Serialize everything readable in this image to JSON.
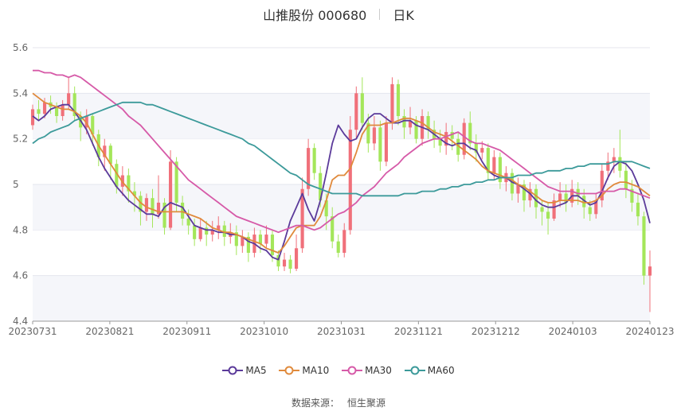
{
  "header": {
    "title": "山推股份 000680",
    "period": "日K"
  },
  "legend": [
    {
      "name": "MA5",
      "color": "#5b3a9a"
    },
    {
      "name": "MA10",
      "color": "#e08a3c"
    },
    {
      "name": "MA30",
      "color": "#d65aa8"
    },
    {
      "name": "MA60",
      "color": "#3c9a9a"
    }
  ],
  "footer": {
    "source_label": "数据来源：",
    "source_name": "恒生聚源"
  },
  "colors": {
    "up": "#f0707a",
    "down": "#a4e65a",
    "grid_band": "#f5f6fa",
    "axis": "#666666"
  },
  "chart_data": {
    "type": "candlestick",
    "title": "山推股份 000680 日K",
    "ylim": [
      4.4,
      5.6
    ],
    "yticks": [
      4.4,
      4.6,
      4.8,
      5,
      5.2,
      5.4,
      5.6
    ],
    "xticks": [
      "20230731",
      "20230821",
      "20230911",
      "20231010",
      "20231031",
      "20231121",
      "20231212",
      "20240103",
      "20240123"
    ],
    "series": [
      {
        "name": "MA5",
        "values": [
          5.3,
          5.28,
          5.3,
          5.33,
          5.34,
          5.35,
          5.35,
          5.32,
          5.28,
          5.24,
          5.18,
          5.12,
          5.07,
          5.03,
          4.99,
          4.96,
          4.93,
          4.91,
          4.89,
          4.87,
          4.87,
          4.86,
          4.9,
          4.92,
          4.91,
          4.9,
          4.86,
          4.82,
          4.81,
          4.8,
          4.8,
          4.79,
          4.79,
          4.78,
          4.78,
          4.77,
          4.75,
          4.74,
          4.72,
          4.71,
          4.68,
          4.67,
          4.75,
          4.84,
          4.9,
          4.96,
          4.89,
          4.84,
          4.93,
          5.05,
          5.18,
          5.26,
          5.22,
          5.19,
          5.2,
          5.25,
          5.29,
          5.31,
          5.31,
          5.29,
          5.27,
          5.27,
          5.28,
          5.28,
          5.26,
          5.25,
          5.24,
          5.22,
          5.2,
          5.18,
          5.17,
          5.18,
          5.18,
          5.16,
          5.15,
          5.1,
          5.06,
          5.04,
          5.03,
          5.03,
          5.01,
          5.0,
          4.98,
          4.96,
          4.93,
          4.91,
          4.9,
          4.9,
          4.91,
          4.92,
          4.95,
          4.95,
          4.93,
          4.91,
          4.92,
          4.97,
          5.03,
          5.08,
          5.1,
          5.09,
          5.06,
          5.0,
          4.93,
          4.83
        ]
      },
      {
        "name": "MA10",
        "values": [
          5.4,
          5.38,
          5.36,
          5.35,
          5.34,
          5.33,
          5.33,
          5.32,
          5.3,
          5.27,
          5.22,
          5.17,
          5.13,
          5.09,
          5.05,
          5.01,
          4.98,
          4.95,
          4.92,
          4.9,
          4.89,
          4.88,
          4.88,
          4.88,
          4.88,
          4.88,
          4.87,
          4.86,
          4.85,
          4.83,
          4.81,
          4.8,
          4.79,
          4.79,
          4.78,
          4.77,
          4.76,
          4.75,
          4.74,
          4.72,
          4.71,
          4.7,
          4.73,
          4.77,
          4.81,
          4.82,
          4.82,
          4.82,
          4.86,
          4.93,
          5.02,
          5.04,
          5.04,
          5.07,
          5.14,
          5.22,
          5.26,
          5.26,
          5.26,
          5.27,
          5.27,
          5.28,
          5.29,
          5.29,
          5.28,
          5.27,
          5.25,
          5.23,
          5.22,
          5.21,
          5.19,
          5.17,
          5.15,
          5.13,
          5.11,
          5.08,
          5.06,
          5.05,
          5.04,
          5.03,
          5.02,
          5.0,
          4.99,
          4.97,
          4.95,
          4.93,
          4.92,
          4.92,
          4.93,
          4.93,
          4.93,
          4.93,
          4.92,
          4.92,
          4.93,
          4.95,
          4.98,
          5.0,
          5.01,
          5.01,
          5.0,
          4.99,
          4.97,
          4.95
        ]
      },
      {
        "name": "MA30",
        "values": [
          5.5,
          5.5,
          5.49,
          5.49,
          5.48,
          5.48,
          5.47,
          5.48,
          5.47,
          5.45,
          5.43,
          5.41,
          5.39,
          5.37,
          5.35,
          5.33,
          5.3,
          5.28,
          5.26,
          5.23,
          5.2,
          5.17,
          5.14,
          5.11,
          5.08,
          5.05,
          5.02,
          5.0,
          4.98,
          4.96,
          4.94,
          4.92,
          4.9,
          4.88,
          4.86,
          4.85,
          4.84,
          4.83,
          4.82,
          4.81,
          4.8,
          4.79,
          4.8,
          4.81,
          4.82,
          4.82,
          4.81,
          4.8,
          4.81,
          4.83,
          4.85,
          4.87,
          4.88,
          4.9,
          4.92,
          4.95,
          4.97,
          4.99,
          5.02,
          5.05,
          5.07,
          5.09,
          5.12,
          5.14,
          5.16,
          5.18,
          5.19,
          5.2,
          5.2,
          5.21,
          5.22,
          5.23,
          5.21,
          5.19,
          5.18,
          5.18,
          5.17,
          5.16,
          5.15,
          5.13,
          5.11,
          5.09,
          5.07,
          5.05,
          5.03,
          5.01,
          4.99,
          4.98,
          4.97,
          4.97,
          4.97,
          4.96,
          4.96,
          4.96,
          4.96,
          4.97,
          4.97,
          4.97,
          4.98,
          4.98,
          4.97,
          4.96,
          4.95,
          4.94
        ]
      },
      {
        "name": "MA60",
        "values": [
          5.18,
          5.2,
          5.21,
          5.23,
          5.24,
          5.25,
          5.26,
          5.28,
          5.29,
          5.3,
          5.31,
          5.32,
          5.33,
          5.34,
          5.35,
          5.36,
          5.36,
          5.36,
          5.36,
          5.35,
          5.35,
          5.34,
          5.33,
          5.32,
          5.31,
          5.3,
          5.29,
          5.28,
          5.27,
          5.26,
          5.25,
          5.24,
          5.23,
          5.22,
          5.21,
          5.2,
          5.18,
          5.17,
          5.15,
          5.13,
          5.11,
          5.09,
          5.07,
          5.05,
          5.04,
          5.02,
          5.0,
          4.99,
          4.98,
          4.97,
          4.96,
          4.96,
          4.96,
          4.96,
          4.96,
          4.95,
          4.95,
          4.95,
          4.95,
          4.95,
          4.95,
          4.95,
          4.96,
          4.96,
          4.96,
          4.97,
          4.97,
          4.97,
          4.98,
          4.98,
          4.99,
          4.99,
          5.0,
          5.0,
          5.01,
          5.01,
          5.02,
          5.02,
          5.03,
          5.03,
          5.03,
          5.04,
          5.04,
          5.04,
          5.05,
          5.05,
          5.06,
          5.06,
          5.06,
          5.07,
          5.07,
          5.08,
          5.08,
          5.09,
          5.09,
          5.09,
          5.09,
          5.1,
          5.1,
          5.1,
          5.1,
          5.09,
          5.08,
          5.07
        ]
      }
    ],
    "candles": [
      [
        5.26,
        5.33,
        5.35,
        5.24
      ],
      [
        5.33,
        5.31,
        5.37,
        5.28
      ],
      [
        5.31,
        5.36,
        5.38,
        5.29
      ],
      [
        5.36,
        5.34,
        5.39,
        5.31
      ],
      [
        5.34,
        5.3,
        5.36,
        5.27
      ],
      [
        5.3,
        5.35,
        5.37,
        5.28
      ],
      [
        5.35,
        5.4,
        5.47,
        5.33
      ],
      [
        5.4,
        5.3,
        5.43,
        5.28
      ],
      [
        5.3,
        5.25,
        5.32,
        5.19
      ],
      [
        5.25,
        5.3,
        5.33,
        5.22
      ],
      [
        5.3,
        5.22,
        5.31,
        5.17
      ],
      [
        5.22,
        5.12,
        5.24,
        5.08
      ],
      [
        5.12,
        5.17,
        5.2,
        5.06
      ],
      [
        5.17,
        5.09,
        5.18,
        5.02
      ],
      [
        5.09,
        4.99,
        5.11,
        4.96
      ],
      [
        4.99,
        5.04,
        5.08,
        4.95
      ],
      [
        5.04,
        4.97,
        5.07,
        4.92
      ],
      [
        4.97,
        4.95,
        5.01,
        4.88
      ],
      [
        4.95,
        4.88,
        4.97,
        4.82
      ],
      [
        4.88,
        4.94,
        4.96,
        4.84
      ],
      [
        4.94,
        4.87,
        4.98,
        4.81
      ],
      [
        4.87,
        4.92,
        5.04,
        4.85
      ],
      [
        4.92,
        4.81,
        4.94,
        4.78
      ],
      [
        4.81,
        5.1,
        5.15,
        4.8
      ],
      [
        5.1,
        4.92,
        5.12,
        4.88
      ],
      [
        4.92,
        4.85,
        4.95,
        4.82
      ],
      [
        4.85,
        4.82,
        4.89,
        4.78
      ],
      [
        4.82,
        4.76,
        4.85,
        4.73
      ],
      [
        4.76,
        4.81,
        4.85,
        4.75
      ],
      [
        4.81,
        4.78,
        4.84,
        4.73
      ],
      [
        4.78,
        4.8,
        4.84,
        4.75
      ],
      [
        4.8,
        4.82,
        4.86,
        4.76
      ],
      [
        4.82,
        4.77,
        4.84,
        4.73
      ],
      [
        4.77,
        4.79,
        4.83,
        4.74
      ],
      [
        4.79,
        4.73,
        4.82,
        4.69
      ],
      [
        4.73,
        4.77,
        4.8,
        4.7
      ],
      [
        4.77,
        4.7,
        4.79,
        4.66
      ],
      [
        4.7,
        4.78,
        4.81,
        4.68
      ],
      [
        4.78,
        4.74,
        4.8,
        4.7
      ],
      [
        4.74,
        4.78,
        4.82,
        4.72
      ],
      [
        4.78,
        4.69,
        4.8,
        4.66
      ],
      [
        4.69,
        4.64,
        4.71,
        4.62
      ],
      [
        4.64,
        4.67,
        4.7,
        4.62
      ],
      [
        4.67,
        4.63,
        4.69,
        4.61
      ],
      [
        4.63,
        4.72,
        4.78,
        4.62
      ],
      [
        4.72,
        4.98,
        5.03,
        4.7
      ],
      [
        4.98,
        5.16,
        5.2,
        4.95
      ],
      [
        5.16,
        5.05,
        5.18,
        5.02
      ],
      [
        5.05,
        4.93,
        5.08,
        4.9
      ],
      [
        4.93,
        4.86,
        4.96,
        4.8
      ],
      [
        4.86,
        4.75,
        4.9,
        4.72
      ],
      [
        4.75,
        4.7,
        4.78,
        4.68
      ],
      [
        4.7,
        4.8,
        4.83,
        4.68
      ],
      [
        4.8,
        5.24,
        5.3,
        4.78
      ],
      [
        5.24,
        5.4,
        5.43,
        5.2
      ],
      [
        5.4,
        5.27,
        5.47,
        5.24
      ],
      [
        5.27,
        5.18,
        5.31,
        5.14
      ],
      [
        5.18,
        5.25,
        5.3,
        5.15
      ],
      [
        5.25,
        5.1,
        5.28,
        5.06
      ],
      [
        5.1,
        5.27,
        5.3,
        5.08
      ],
      [
        5.27,
        5.44,
        5.47,
        5.24
      ],
      [
        5.44,
        5.3,
        5.46,
        5.26
      ],
      [
        5.3,
        5.25,
        5.33,
        5.2
      ],
      [
        5.25,
        5.28,
        5.34,
        5.22
      ],
      [
        5.28,
        5.2,
        5.3,
        5.18
      ],
      [
        5.2,
        5.3,
        5.33,
        5.17
      ],
      [
        5.3,
        5.24,
        5.32,
        5.2
      ],
      [
        5.24,
        5.2,
        5.28,
        5.16
      ],
      [
        5.2,
        5.17,
        5.24,
        5.14
      ],
      [
        5.17,
        5.23,
        5.27,
        5.13
      ],
      [
        5.23,
        5.2,
        5.26,
        5.15
      ],
      [
        5.2,
        5.13,
        5.23,
        5.1
      ],
      [
        5.13,
        5.27,
        5.29,
        5.11
      ],
      [
        5.27,
        5.18,
        5.32,
        5.15
      ],
      [
        5.18,
        5.14,
        5.22,
        5.1
      ],
      [
        5.14,
        5.16,
        5.19,
        5.11
      ],
      [
        5.16,
        5.05,
        5.18,
        5.02
      ],
      [
        5.05,
        5.12,
        5.15,
        5.02
      ],
      [
        5.12,
        5.01,
        5.14,
        4.98
      ],
      [
        5.01,
        5.05,
        5.08,
        4.97
      ],
      [
        5.05,
        4.96,
        5.07,
        4.93
      ],
      [
        4.96,
        5.0,
        5.03,
        4.92
      ],
      [
        5.0,
        4.93,
        5.02,
        4.88
      ],
      [
        4.93,
        4.98,
        5.01,
        4.9
      ],
      [
        4.98,
        4.9,
        5.0,
        4.85
      ],
      [
        4.9,
        4.88,
        4.93,
        4.82
      ],
      [
        4.88,
        4.85,
        4.92,
        4.78
      ],
      [
        4.85,
        4.93,
        4.96,
        4.84
      ],
      [
        4.93,
        4.96,
        5.01,
        4.9
      ],
      [
        4.96,
        4.92,
        5.0,
        4.88
      ],
      [
        4.92,
        4.98,
        5.02,
        4.9
      ],
      [
        4.98,
        4.95,
        5.01,
        4.91
      ],
      [
        4.95,
        4.9,
        4.98,
        4.85
      ],
      [
        4.9,
        4.87,
        4.93,
        4.84
      ],
      [
        4.87,
        4.93,
        4.96,
        4.85
      ],
      [
        4.93,
        5.06,
        5.09,
        4.9
      ],
      [
        5.06,
        5.1,
        5.14,
        5.02
      ],
      [
        5.1,
        5.12,
        5.16,
        5.05
      ],
      [
        5.12,
        5.06,
        5.24,
        5.03
      ],
      [
        5.06,
        4.98,
        5.1,
        4.94
      ],
      [
        4.98,
        4.92,
        5.02,
        4.88
      ],
      [
        4.92,
        4.86,
        4.96,
        4.82
      ],
      [
        4.86,
        4.6,
        4.88,
        4.56
      ],
      [
        4.6,
        4.64,
        4.71,
        4.44
      ]
    ],
    "grid": true
  }
}
